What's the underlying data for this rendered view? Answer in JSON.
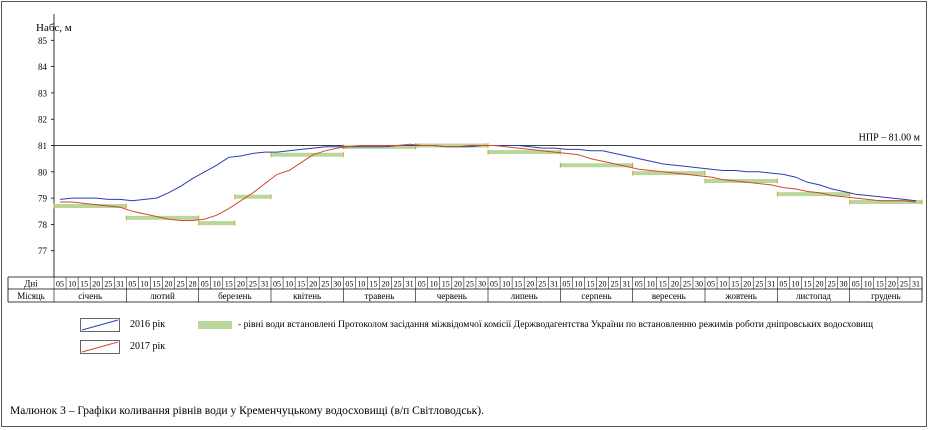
{
  "chart_data": {
    "type": "line",
    "ylabel": "Hабс, м",
    "ylim": [
      76,
      86
    ],
    "yticks": [
      77,
      78,
      79,
      80,
      81,
      82,
      83,
      84,
      85
    ],
    "reference_line": {
      "value": 81.0,
      "label": "НПР – 81.00 м"
    },
    "row_labels": {
      "days": "Дні",
      "month": "Місяць"
    },
    "months": [
      {
        "name": "січень",
        "days": [
          "05",
          "10",
          "15",
          "20",
          "25",
          "31"
        ]
      },
      {
        "name": "лютий",
        "days": [
          "05",
          "10",
          "15",
          "20",
          "25",
          "28"
        ]
      },
      {
        "name": "березень",
        "days": [
          "05",
          "10",
          "15",
          "20",
          "25",
          "31"
        ]
      },
      {
        "name": "квітень",
        "days": [
          "05",
          "10",
          "15",
          "20",
          "25",
          "30"
        ]
      },
      {
        "name": "травень",
        "days": [
          "05",
          "10",
          "15",
          "20",
          "25",
          "31"
        ]
      },
      {
        "name": "червень",
        "days": [
          "05",
          "10",
          "15",
          "20",
          "25",
          "30"
        ]
      },
      {
        "name": "липень",
        "days": [
          "05",
          "10",
          "15",
          "20",
          "25",
          "31"
        ]
      },
      {
        "name": "серпень",
        "days": [
          "05",
          "10",
          "15",
          "20",
          "25",
          "31"
        ]
      },
      {
        "name": "вересень",
        "days": [
          "05",
          "10",
          "15",
          "20",
          "25",
          "30"
        ]
      },
      {
        "name": "жовтень",
        "days": [
          "05",
          "10",
          "15",
          "20",
          "25",
          "31"
        ]
      },
      {
        "name": "листопад",
        "days": [
          "05",
          "10",
          "15",
          "20",
          "25",
          "30"
        ]
      },
      {
        "name": "грудень",
        "days": [
          "05",
          "10",
          "15",
          "20",
          "25",
          "31"
        ]
      }
    ],
    "series": [
      {
        "name": "2016 рік",
        "color": "#2b3fb0",
        "x": [
          0,
          1,
          2,
          3,
          4,
          5,
          6,
          7,
          8,
          9,
          10,
          11,
          12,
          13,
          14,
          15,
          16,
          17,
          18,
          19,
          20,
          21,
          22,
          23,
          24,
          25,
          26,
          27,
          28,
          29,
          30,
          31,
          32,
          33,
          34,
          35,
          36,
          37,
          38,
          39,
          40,
          41,
          42,
          43,
          44,
          45,
          46,
          47,
          48,
          49,
          50,
          51,
          52,
          53,
          54,
          55,
          56,
          57,
          58,
          59,
          60,
          61,
          62,
          63,
          64,
          65,
          66,
          67,
          68,
          69,
          70,
          71
        ],
        "y": [
          78.95,
          79.0,
          79.0,
          79.0,
          78.95,
          78.95,
          78.9,
          78.95,
          79.0,
          79.2,
          79.45,
          79.75,
          80.0,
          80.25,
          80.55,
          80.6,
          80.7,
          80.75,
          80.75,
          80.8,
          80.85,
          80.9,
          80.95,
          80.95,
          80.95,
          80.95,
          80.95,
          80.95,
          81.0,
          81.0,
          81.0,
          81.0,
          80.95,
          80.95,
          80.95,
          81.0,
          81.0,
          81.0,
          81.0,
          80.95,
          80.9,
          80.9,
          80.85,
          80.85,
          80.8,
          80.8,
          80.7,
          80.6,
          80.5,
          80.4,
          80.3,
          80.25,
          80.2,
          80.15,
          80.1,
          80.05,
          80.05,
          80.0,
          80.0,
          79.95,
          79.9,
          79.8,
          79.6,
          79.5,
          79.35,
          79.25,
          79.15,
          79.1,
          79.05,
          79.0,
          78.95,
          78.9
        ]
      },
      {
        "name": "2017 рік",
        "color": "#d24a2c",
        "x": [
          0,
          1,
          2,
          3,
          4,
          5,
          6,
          7,
          8,
          9,
          10,
          11,
          12,
          13,
          14,
          15,
          16,
          17,
          18,
          19,
          20,
          21,
          22,
          23,
          24,
          25,
          26,
          27,
          28,
          29,
          30,
          31,
          32,
          33,
          34,
          35,
          36,
          37,
          38,
          39,
          40,
          41,
          42,
          43,
          44,
          45,
          46,
          47,
          48,
          49,
          50,
          51,
          52,
          53,
          54,
          55,
          56,
          57,
          58,
          59,
          60,
          61,
          62,
          63,
          64,
          65,
          66,
          67,
          68,
          69,
          70,
          71
        ],
        "y": [
          78.85,
          78.85,
          78.8,
          78.75,
          78.7,
          78.65,
          78.5,
          78.4,
          78.3,
          78.2,
          78.15,
          78.15,
          78.2,
          78.35,
          78.6,
          78.9,
          79.2,
          79.55,
          79.9,
          80.05,
          80.35,
          80.65,
          80.8,
          80.9,
          80.95,
          81.0,
          81.0,
          81.0,
          81.0,
          81.05,
          81.0,
          81.0,
          80.95,
          80.95,
          81.0,
          81.0,
          81.0,
          80.95,
          80.9,
          80.85,
          80.8,
          80.75,
          80.7,
          80.65,
          80.5,
          80.4,
          80.3,
          80.2,
          80.1,
          80.05,
          80.0,
          79.95,
          79.9,
          79.85,
          79.8,
          79.7,
          79.65,
          79.6,
          79.55,
          79.5,
          79.4,
          79.35,
          79.25,
          79.2,
          79.1,
          79.05,
          79.0,
          78.95,
          78.9,
          78.9,
          78.9,
          78.85
        ]
      }
    ],
    "protocol_levels": {
      "color": "#b9d79a",
      "label": "- рівні води встановлені Протоколом засідання міжвідомчої комісії Держводагентства України по встановленню режимів роботи дніпровських водосховищ",
      "segments": [
        {
          "x": [
            0,
            12
          ],
          "y": 78.7
        },
        {
          "x": [
            12,
            24
          ],
          "y": 78.25
        },
        {
          "x": [
            24,
            30
          ],
          "y": 78.05
        },
        {
          "x": [
            30,
            36
          ],
          "y": 79.05
        },
        {
          "x": [
            36,
            48
          ],
          "y": 80.65
        },
        {
          "x": [
            48,
            60
          ],
          "y": 80.95
        },
        {
          "x": [
            60,
            72
          ],
          "y": 81.0
        },
        {
          "x": [
            72,
            84
          ],
          "y": 80.75
        },
        {
          "x": [
            84,
            96
          ],
          "y": 80.25
        },
        {
          "x": [
            96,
            108
          ],
          "y": 79.95
        },
        {
          "x": [
            108,
            120
          ],
          "y": 79.65
        },
        {
          "x": [
            120,
            132
          ],
          "y": 79.15
        },
        {
          "x": [
            132,
            144
          ],
          "y": 78.85
        }
      ]
    }
  },
  "legend": {
    "series_2016": "2016 рік",
    "series_2017": "2017 рік",
    "protocol": "- рівні води встановлені Протоколом засідання міжвідомчої комісії Держводагентства України по встановленню режимів роботи дніпровських водосховищ"
  },
  "caption": "Малюнок 3  – Графіки коливання рівнів води у Кременчуцькому водосховищі (в/п Світловодськ)."
}
